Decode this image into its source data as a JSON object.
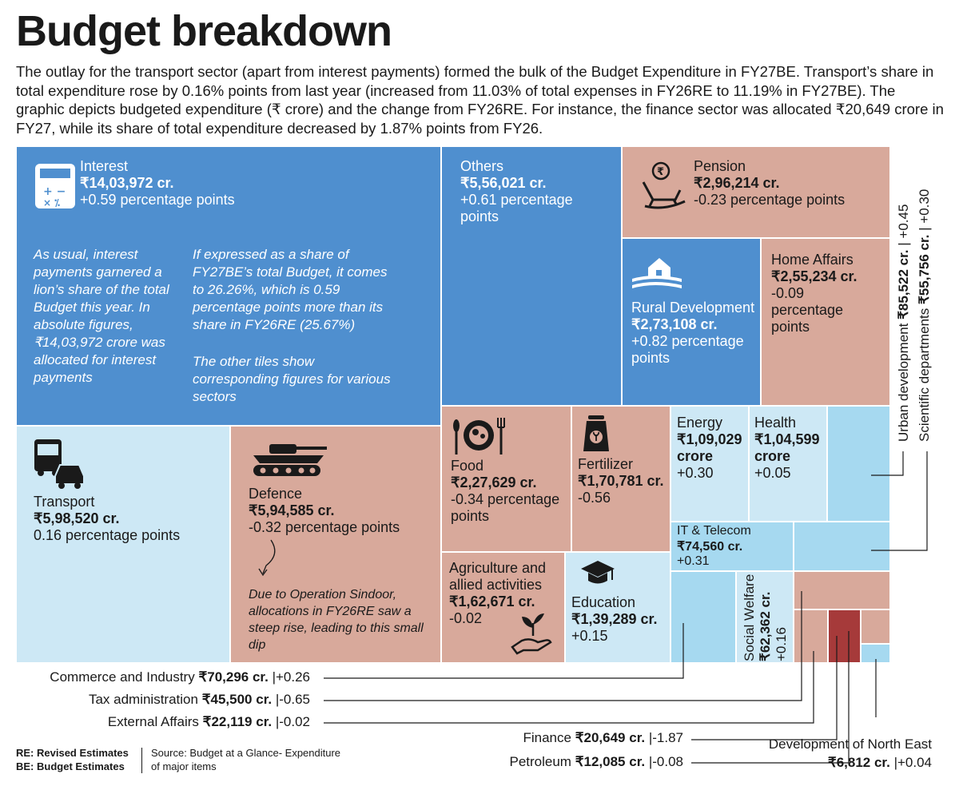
{
  "title": "Budget breakdown",
  "intro": "The outlay for the transport sector (apart from interest payments) formed the bulk of the Budget Expenditure in FY27BE. Transport’s share in total expenditure rose by 0.16% points from last year (increased from 11.03% of total expenses in FY26RE to 11.19% in FY27BE). The graphic depicts budgeted expenditure (₹ crore) and the change from FY26RE. For instance, the finance sector was allocated ₹20,649 crore in FY27, while its share of total expenditure decreased by 1.87% points from FY26.",
  "chart_data": {
    "type": "treemap",
    "units": "₹ crore",
    "items": [
      {
        "name": "Interest",
        "value_label": "₹14,03,972 cr.",
        "value": 1403972,
        "change_label": "+0.59 percentage points",
        "change": 0.59
      },
      {
        "name": "Others",
        "value_label": "₹5,56,021 cr.",
        "value": 556021,
        "change_label": "+0.61 percentage points",
        "change": 0.61
      },
      {
        "name": "Pension",
        "value_label": "₹2,96,214 cr.",
        "value": 296214,
        "change_label": "-0.23 percentage points",
        "change": -0.23
      },
      {
        "name": "Rural Development",
        "value_label": "₹2,73,108 cr.",
        "value": 273108,
        "change_label": "+0.82 percentage points",
        "change": 0.82
      },
      {
        "name": "Home Affairs",
        "value_label": "₹2,55,234 cr.",
        "value": 255234,
        "change_label": "-0.09 percentage points",
        "change": -0.09
      },
      {
        "name": "Transport",
        "value_label": "₹5,98,520 cr.",
        "value": 598520,
        "change_label": "0.16 percentage points",
        "change": 0.16
      },
      {
        "name": "Defence",
        "value_label": "₹5,94,585 cr.",
        "value": 594585,
        "change_label": "-0.32 percentage points",
        "change": -0.32
      },
      {
        "name": "Food",
        "value_label": "₹2,27,629 cr.",
        "value": 227629,
        "change_label": "-0.34 percentage points",
        "change": -0.34
      },
      {
        "name": "Fertilizer",
        "value_label": "₹1,70,781 cr.",
        "value": 170781,
        "change_label": "-0.56",
        "change": -0.56
      },
      {
        "name": "Energy",
        "value_label": "₹1,09,029 crore",
        "value": 109029,
        "change_label": "+0.30",
        "change": 0.3
      },
      {
        "name": "Health",
        "value_label": "₹1,04,599 crore",
        "value": 104599,
        "change_label": "+0.05",
        "change": 0.05
      },
      {
        "name": "IT & Telecom",
        "value_label": "₹74,560 cr.",
        "value": 74560,
        "change_label": "+0.31",
        "change": 0.31
      },
      {
        "name": "Agriculture and allied activities",
        "value_label": "₹1,62,671 cr.",
        "value": 162671,
        "change_label": "-0.02",
        "change": -0.02
      },
      {
        "name": "Education",
        "value_label": "₹1,39,289 cr.",
        "value": 139289,
        "change_label": "+0.15",
        "change": 0.15
      },
      {
        "name": "Social Welfare",
        "value_label": "₹62,362 cr.",
        "value": 62362,
        "change_label": "+0.16",
        "change": 0.16
      },
      {
        "name": "Urban development",
        "value_label": "₹85,522 cr.",
        "value": 85522,
        "change_label": "+0.45",
        "change": 0.45
      },
      {
        "name": "Scientific departments",
        "value_label": "₹55,756 cr.",
        "value": 55756,
        "change_label": "+0.30",
        "change": 0.3
      },
      {
        "name": "Commerce and Industry",
        "value_label": "₹70,296 cr.",
        "value": 70296,
        "change_label": "+0.26",
        "change": 0.26
      },
      {
        "name": "Tax administration",
        "value_label": "₹45,500 cr.",
        "value": 45500,
        "change_label": "-0.65",
        "change": -0.65
      },
      {
        "name": "External Affairs",
        "value_label": "₹22,119 cr.",
        "value": 22119,
        "change_label": "-0.02",
        "change": -0.02
      },
      {
        "name": "Finance",
        "value_label": "₹20,649 cr.",
        "value": 20649,
        "change_label": "-1.87",
        "change": -1.87
      },
      {
        "name": "Petroleum",
        "value_label": "₹12,085 cr.",
        "value": 12085,
        "change_label": "-0.08",
        "change": -0.08
      },
      {
        "name": "Development of North East",
        "value_label": "₹6,812 cr.",
        "value": 6812,
        "change_label": "+0.04",
        "change": 0.04
      }
    ],
    "annotations": {
      "interest_left": "As usual, interest payments garnered a lion’s share of the total Budget this year. In absolute figures, ₹14,03,972 crore was allocated for interest payments",
      "interest_right_1": "If expressed as a share of FY27BE’s total Budget, it comes to 26.26%, which is 0.59 percentage points more than its share in FY26RE (25.67%)",
      "interest_right_2": "The other tiles show corresponding figures for various sectors",
      "defence": "Due to Operation Sindoor, allocations in FY26RE saw a steep rise, leading to this small dip"
    }
  },
  "footnote": {
    "re": "RE: Revised Estimates",
    "be": "BE: Budget Estimates",
    "source": "Source: Budget at a Glance- Expenditure of major items"
  },
  "colors": {
    "blue": "#4f8fcf",
    "pink": "#d8a99b",
    "pale_blue": "#cde8f5",
    "light_blue": "#a6d9f0",
    "dark_red": "#a63a3a"
  }
}
